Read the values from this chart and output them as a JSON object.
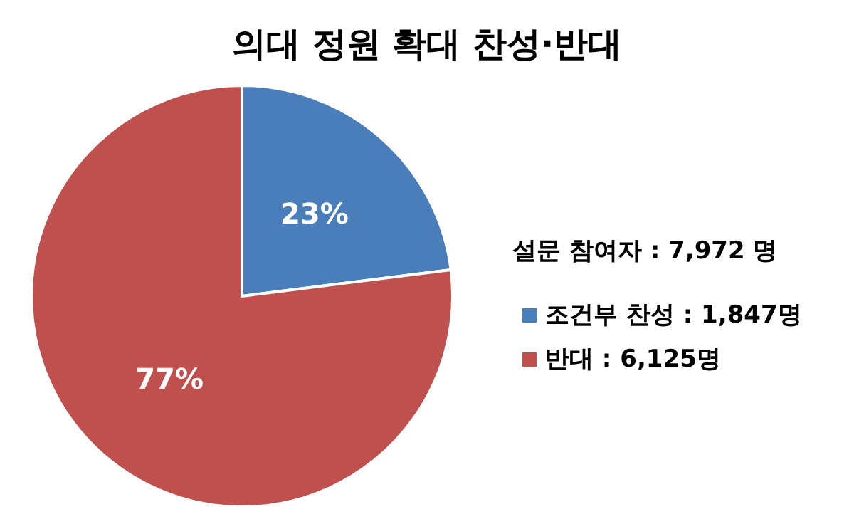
{
  "chart_data": {
    "type": "pie",
    "title": "의대 정원 확대 찬성·반대",
    "legend_title": "설문 참여자 : 7,972 명",
    "categories": [
      "조건부 찬성 : 1,847명",
      "반대 : 6,125명"
    ],
    "values": [
      23,
      77
    ],
    "colors": [
      "#4a7ebb",
      "#c0504d"
    ],
    "value_labels": [
      "23%",
      "77%"
    ],
    "legend": "right"
  }
}
